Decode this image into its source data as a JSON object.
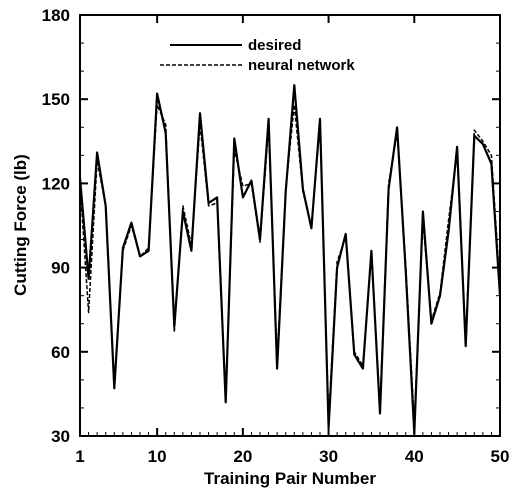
{
  "chart_data": {
    "type": "line",
    "title": "",
    "xlabel": "Training Pair Number",
    "ylabel": "Cutting Force (lb)",
    "xlim": [
      1,
      50
    ],
    "ylim": [
      30,
      180
    ],
    "xticks": [
      1,
      10,
      20,
      30,
      40,
      50
    ],
    "yticks": [
      30,
      60,
      90,
      120,
      150,
      180
    ],
    "grid": false,
    "legend_position": "top-center",
    "x": [
      1,
      2,
      3,
      4,
      5,
      6,
      7,
      8,
      9,
      10,
      11,
      12,
      13,
      14,
      15,
      16,
      17,
      18,
      19,
      20,
      21,
      22,
      23,
      24,
      25,
      26,
      27,
      28,
      29,
      30,
      31,
      32,
      33,
      34,
      35,
      36,
      37,
      38,
      39,
      40,
      41,
      42,
      43,
      44,
      45,
      46,
      47,
      48,
      49,
      50
    ],
    "series": [
      {
        "name": "desired",
        "style": "solid",
        "color": "#000000",
        "values": [
          122,
          86,
          131,
          112,
          47,
          97,
          106,
          94,
          96,
          152,
          138,
          69,
          110,
          96,
          145,
          113,
          115,
          42,
          136,
          115,
          121,
          100,
          143,
          54,
          117,
          155,
          118,
          104,
          143,
          33,
          90,
          102,
          59,
          54,
          96,
          38,
          118,
          140,
          89,
          31,
          110,
          70,
          80,
          103,
          133,
          62,
          137,
          134,
          127,
          80
        ]
      },
      {
        "name": "neural network",
        "style": "dashed",
        "color": "#000000",
        "values": [
          120,
          74,
          128,
          112,
          48,
          96,
          105,
          94,
          97,
          148,
          141,
          67,
          112,
          98,
          141,
          112,
          113,
          43,
          132,
          119,
          120,
          99,
          140,
          57,
          118,
          148,
          117,
          105,
          141,
          36,
          92,
          101,
          60,
          55,
          95,
          40,
          120,
          138,
          91,
          35,
          107,
          71,
          81,
          107,
          131,
          63,
          139,
          135,
          130,
          83
        ]
      }
    ]
  }
}
